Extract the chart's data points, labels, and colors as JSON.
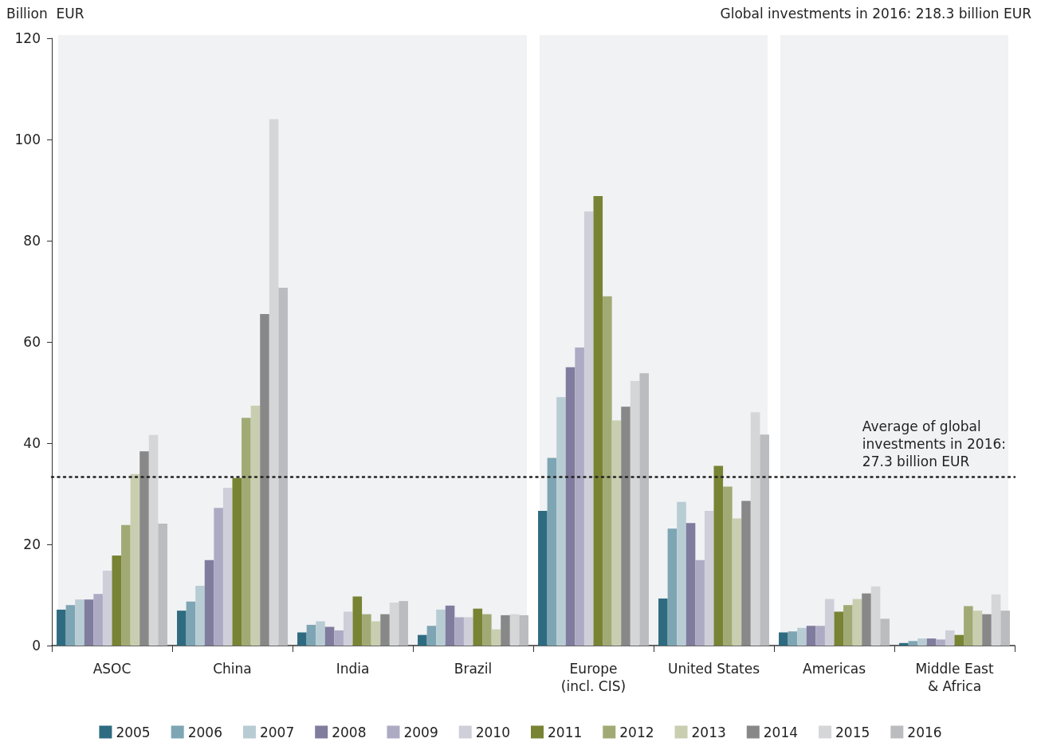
{
  "chart_data": {
    "type": "bar",
    "ylabel": "Billion  EUR",
    "annotations": [
      "Global investments in 2016: 218.3 billion EUR",
      "Average of global\ninvestments in 2016:\n27.3 billion EUR"
    ],
    "categories": [
      "ASOC",
      "China",
      "India",
      "Brazil",
      "Europe\n(incl. CIS)",
      "United States",
      "Americas",
      "Middle East\n& Africa"
    ],
    "series": [
      {
        "name": "2005",
        "color": "#2e6b80",
        "values": [
          7.1,
          6.9,
          2.6,
          2.1,
          26.6,
          9.3,
          2.6,
          0.5
        ]
      },
      {
        "name": "2006",
        "color": "#7ea5b3",
        "values": [
          8.0,
          8.7,
          4.1,
          3.9,
          37.1,
          23.1,
          2.8,
          0.9
        ]
      },
      {
        "name": "2007",
        "color": "#b8ccd4",
        "values": [
          9.1,
          11.8,
          4.8,
          7.1,
          49.1,
          28.4,
          3.5,
          1.4
        ]
      },
      {
        "name": "2008",
        "color": "#7f7c9e",
        "values": [
          9.1,
          16.9,
          3.7,
          7.9,
          55.0,
          24.2,
          3.9,
          1.4
        ]
      },
      {
        "name": "2009",
        "color": "#adaac3",
        "values": [
          10.2,
          27.2,
          3.0,
          5.6,
          58.9,
          16.9,
          3.9,
          1.2
        ]
      },
      {
        "name": "2010",
        "color": "#cfcfda",
        "values": [
          14.8,
          31.2,
          6.7,
          5.6,
          85.8,
          26.6,
          9.2,
          3.0
        ]
      },
      {
        "name": "2011",
        "color": "#788334",
        "values": [
          17.8,
          33.1,
          9.7,
          7.3,
          88.8,
          35.5,
          6.7,
          2.1
        ]
      },
      {
        "name": "2012",
        "color": "#a1aa74",
        "values": [
          23.8,
          45.0,
          6.2,
          6.2,
          69.0,
          31.4,
          8.0,
          7.8
        ]
      },
      {
        "name": "2013",
        "color": "#c9ceb0",
        "values": [
          33.9,
          47.4,
          4.8,
          3.2,
          44.5,
          25.1,
          9.2,
          6.9
        ]
      },
      {
        "name": "2014",
        "color": "#888888",
        "values": [
          38.4,
          65.5,
          6.2,
          6.0,
          47.2,
          28.6,
          10.3,
          6.2
        ]
      },
      {
        "name": "2015",
        "color": "#d5d6d8",
        "values": [
          41.6,
          104,
          8.5,
          6.2,
          52.3,
          46.1,
          11.7,
          10.1
        ]
      },
      {
        "name": "2016",
        "color": "#bbbcbf",
        "values": [
          24.1,
          70.7,
          8.8,
          6.0,
          53.8,
          41.7,
          5.3,
          6.9
        ]
      }
    ],
    "ylim": [
      0,
      120
    ],
    "yticks": [
      0,
      20,
      40,
      60,
      80,
      100,
      120
    ],
    "grid": false,
    "legend": "bottom",
    "ref_lines": [
      {
        "axis": "y",
        "value": 33.4,
        "color": "#222222",
        "line_style": "dotted"
      }
    ],
    "bands": [
      {
        "axis": "x",
        "from": "ASOC",
        "to": "Brazil",
        "color": "#f1f2f4"
      },
      {
        "axis": "x",
        "from": "Europe\n(incl. CIS)",
        "to": "United States",
        "color": "#f1f2f4"
      },
      {
        "axis": "x",
        "from": "Americas",
        "to": "Middle East\n& Africa",
        "color": "#f1f2f4"
      }
    ]
  }
}
